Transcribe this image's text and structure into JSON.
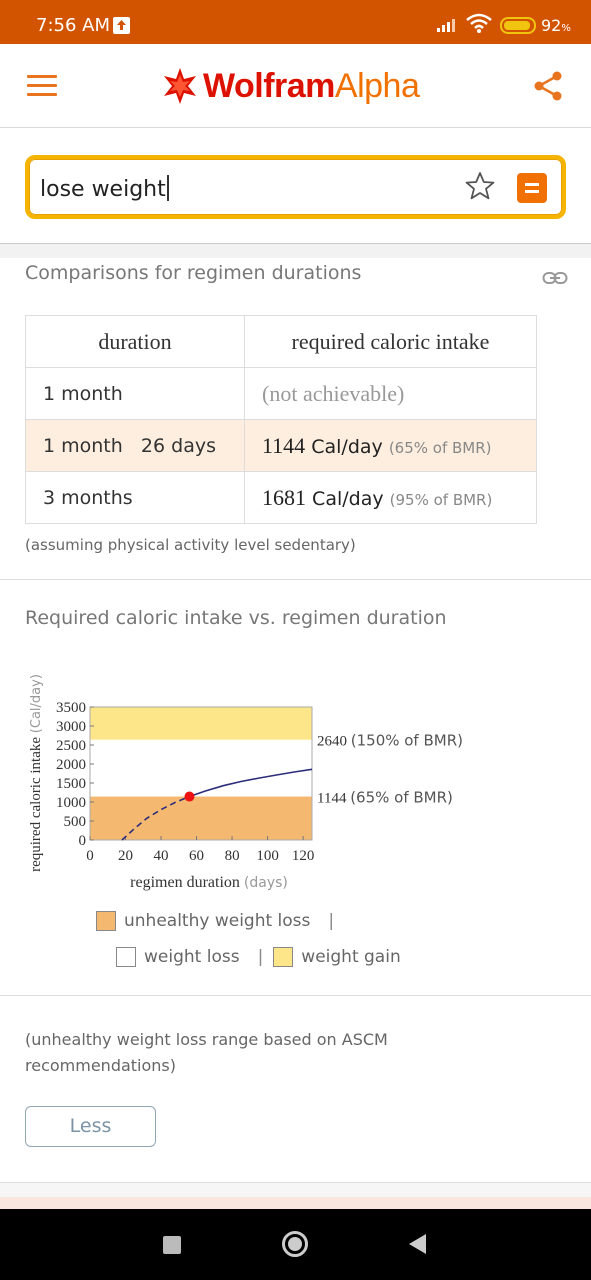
{
  "status_bar": {
    "time": "7:56 AM",
    "battery": "92",
    "battery_unit": "%"
  },
  "app_bar": {
    "logo_part1": "Wolfram",
    "logo_part2": "Alpha",
    "icons": [
      "menu-icon",
      "wolfram-spikey-icon",
      "share-icon"
    ]
  },
  "search": {
    "query": "lose weight",
    "icons": [
      "star-icon",
      "equals-icon"
    ]
  },
  "pod_comparisons": {
    "title": "Comparisons for regimen durations",
    "headers": [
      "duration",
      "required caloric intake"
    ],
    "rows": [
      {
        "duration": "1 month",
        "intake_value": "",
        "intake_unit": "",
        "intake_bmr": "",
        "intake_text": "(not achievable)"
      },
      {
        "duration": "1 month   26 days",
        "intake_value": "1144",
        "intake_unit": "Cal/day",
        "intake_bmr": "(65% of BMR)",
        "intake_text": ""
      },
      {
        "duration": "3 months",
        "intake_value": "1681",
        "intake_unit": "Cal/day",
        "intake_bmr": "(95% of BMR)",
        "intake_text": ""
      }
    ],
    "note": "(assuming physical activity level sedentary)"
  },
  "pod_chart": {
    "title": "Required caloric intake vs. regimen duration",
    "legend": {
      "unhealthy": "unhealthy weight loss",
      "loss": "weight loss",
      "gain": "weight gain",
      "separator": "|"
    }
  },
  "chart_data": {
    "type": "line",
    "title": "",
    "xlabel": "regimen duration",
    "xlabel_unit": "(days)",
    "ylabel": "required caloric intake",
    "ylabel_unit": "(Cal/day)",
    "xlim": [
      0,
      125
    ],
    "ylim": [
      0,
      3500
    ],
    "x_ticks": [
      0,
      20,
      40,
      60,
      80,
      100,
      120
    ],
    "y_ticks": [
      0,
      500,
      1000,
      1500,
      2000,
      2500,
      3000,
      3500
    ],
    "regions": [
      {
        "name": "unhealthy weight loss",
        "from": 0,
        "to": 1144,
        "color": "#f4b870"
      },
      {
        "name": "weight loss",
        "from": 1144,
        "to": 2640,
        "color": "#ffffff"
      },
      {
        "name": "weight gain",
        "from": 2640,
        "to": 3500,
        "color": "#fde58a"
      }
    ],
    "reference_lines": [
      {
        "value": 2640,
        "value_label": "2640",
        "note": "(150% of BMR)"
      },
      {
        "value": 1144,
        "value_label": "1144",
        "note": "(65% of BMR)"
      }
    ],
    "series": [
      {
        "style": "dashed",
        "color": "#2b2d7a",
        "x": [
          18,
          25,
          32,
          40,
          48,
          56
        ],
        "y": [
          0,
          300,
          570,
          800,
          990,
          1144
        ]
      },
      {
        "style": "solid",
        "color": "#2b2d7a",
        "x": [
          56,
          65,
          75,
          85,
          95,
          105,
          115,
          125
        ],
        "y": [
          1144,
          1290,
          1430,
          1540,
          1630,
          1710,
          1790,
          1860
        ]
      }
    ],
    "marker": {
      "x": 56,
      "y": 1144,
      "color": "#ee1111"
    }
  },
  "pod_footer": {
    "text": "(unhealthy weight loss range based on ASCM recommendations)",
    "less_label": "Less"
  }
}
